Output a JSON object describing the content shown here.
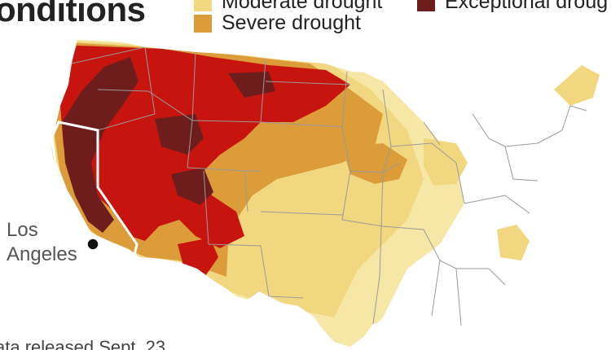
{
  "title": "onditions",
  "legend": {
    "items": [
      {
        "label": "Moderate drought",
        "color": "#f1d77f"
      },
      {
        "label": "Severe drought",
        "color": "#dc9c3a"
      },
      {
        "label": "Exceptional droug",
        "color": "#6e1d1d"
      }
    ]
  },
  "colors": {
    "abnormally_dry": "#f6e7a6",
    "moderate": "#f1d77f",
    "severe": "#dc9c3a",
    "extreme": "#c8140f",
    "exceptional": "#6e1d1d",
    "no_drought": "#ffffff",
    "borders": "#9a9a9a",
    "california_outline": "#ffffff",
    "city_marker": "#111111"
  },
  "map": {
    "city": {
      "name_line1": "Los",
      "name_line2": "Angeles"
    }
  },
  "source": "ata released Sept. 23"
}
